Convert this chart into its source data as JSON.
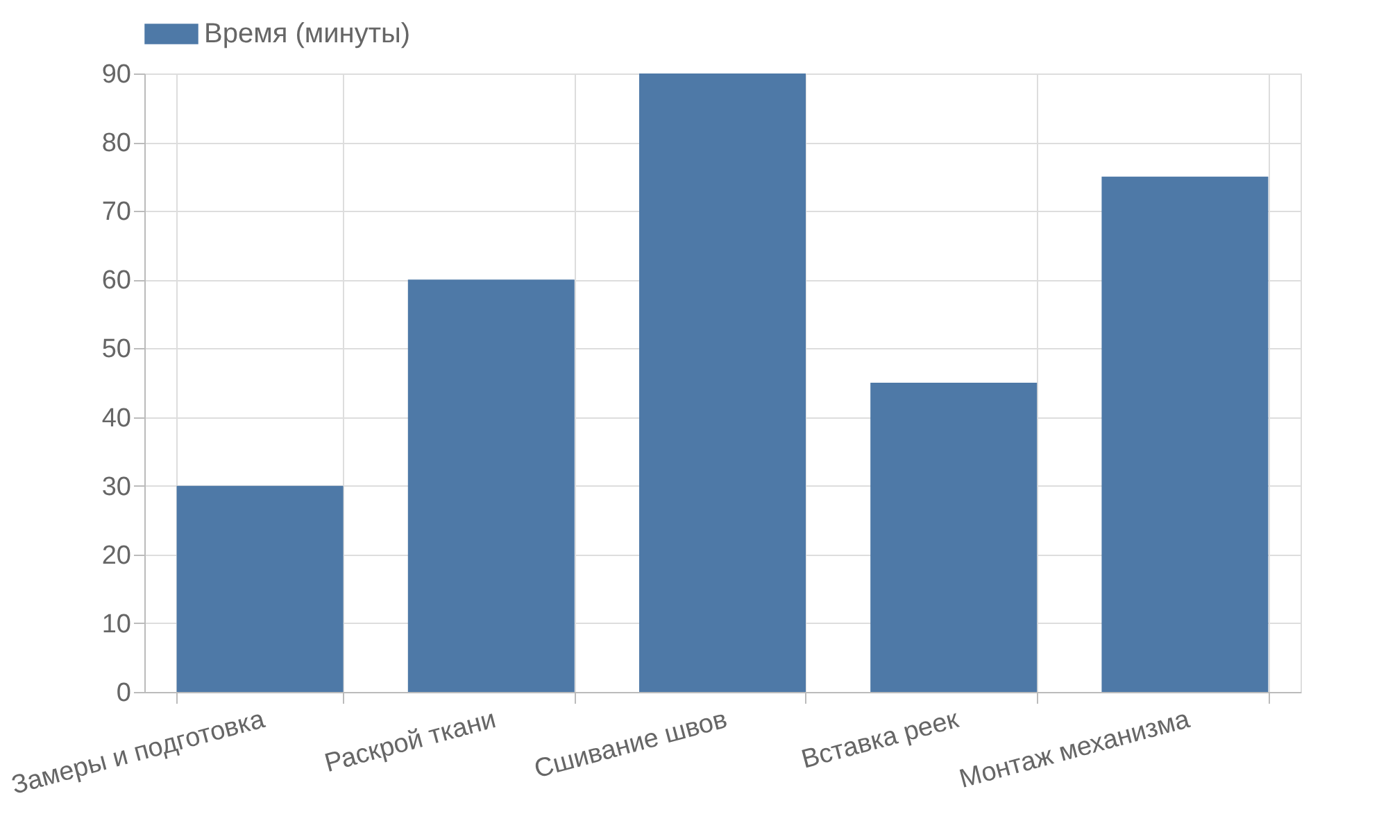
{
  "chart_data": {
    "type": "bar",
    "categories": [
      "Замеры и подготовка",
      "Раскрой ткани",
      "Сшивание швов",
      "Вставка реек",
      "Монтаж механизма"
    ],
    "series": [
      {
        "name": "Время (минуты)",
        "color": "#4e79a7",
        "values": [
          30,
          60,
          90,
          45,
          75
        ]
      }
    ],
    "ylim": [
      0,
      90
    ],
    "yticks": [
      0,
      10,
      20,
      30,
      40,
      50,
      60,
      70,
      80,
      90
    ],
    "grid": true,
    "legend": "top"
  }
}
